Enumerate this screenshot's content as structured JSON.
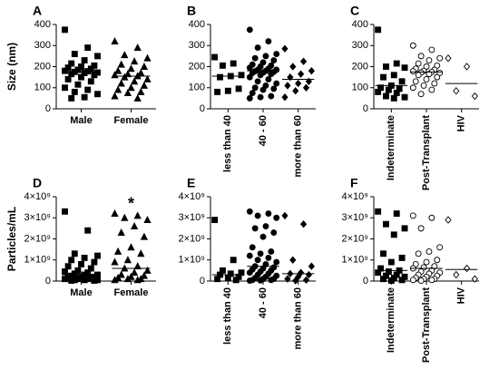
{
  "chart_data": [
    {
      "type": "strip",
      "title": "A",
      "y_label": "Size (nm)",
      "categories": [
        "Male",
        "Female"
      ],
      "markers": [
        "square",
        "triangle"
      ],
      "filled": [
        true,
        true
      ],
      "color": "#000000",
      "ylim": [
        0,
        400
      ],
      "yticks": [
        0,
        100,
        200,
        300,
        400
      ],
      "values": [
        [
          375,
          290,
          260,
          250,
          230,
          215,
          205,
          200,
          195,
          190,
          185,
          180,
          178,
          175,
          172,
          170,
          165,
          160,
          150,
          140,
          130,
          115,
          100,
          90,
          80,
          70,
          55,
          50
        ],
        [
          320,
          290,
          255,
          240,
          225,
          210,
          200,
          190,
          180,
          170,
          165,
          160,
          155,
          150,
          140,
          130,
          120,
          110,
          100,
          90,
          80,
          75,
          60,
          50
        ]
      ],
      "medians": [
        175,
        155
      ]
    },
    {
      "type": "strip",
      "title": "B",
      "categories": [
        "less than 40",
        "40 - 60",
        "more than 60"
      ],
      "markers": [
        "square",
        "circle",
        "diamond"
      ],
      "filled": [
        true,
        true,
        true
      ],
      "color": "#000000",
      "ylim": [
        0,
        400
      ],
      "yticks": [
        0,
        100,
        200,
        300,
        400
      ],
      "values": [
        [
          245,
          215,
          205,
          160,
          155,
          150,
          95,
          85,
          80
        ],
        [
          375,
          320,
          290,
          260,
          250,
          240,
          230,
          220,
          210,
          205,
          200,
          195,
          190,
          185,
          185,
          180,
          178,
          175,
          172,
          170,
          165,
          160,
          150,
          140,
          130,
          120,
          110,
          100,
          95,
          90,
          75,
          60,
          55,
          50
        ],
        [
          285,
          225,
          200,
          180,
          165,
          150,
          130,
          120,
          110,
          100,
          85,
          55
        ]
      ],
      "medians": [
        155,
        180,
        140
      ]
    },
    {
      "type": "strip",
      "title": "C",
      "categories": [
        "Indeterminate",
        "Post-Transplant",
        "HIV"
      ],
      "markers": [
        "square",
        "circle",
        "diamond"
      ],
      "filled": [
        true,
        false,
        false
      ],
      "color": "#000000",
      "ylim": [
        0,
        400
      ],
      "yticks": [
        0,
        100,
        200,
        300,
        400
      ],
      "values": [
        [
          375,
          215,
          200,
          195,
          160,
          150,
          130,
          110,
          100,
          95,
          90,
          80,
          75,
          60,
          55,
          50
        ],
        [
          300,
          280,
          250,
          240,
          230,
          215,
          205,
          200,
          190,
          185,
          180,
          178,
          175,
          172,
          170,
          165,
          160,
          150,
          140,
          130,
          120,
          110,
          100,
          90,
          70
        ],
        [
          240,
          200,
          85,
          60
        ]
      ],
      "medians": [
        110,
        175,
        120
      ]
    },
    {
      "type": "strip",
      "title": "D",
      "y_label": "Particles/mL",
      "categories": [
        "Male",
        "Female"
      ],
      "annotation": "*",
      "markers": [
        "square",
        "triangle"
      ],
      "filled": [
        true,
        true
      ],
      "color": "#000000",
      "ylim": [
        0,
        4000000000.0
      ],
      "yticks": [
        0,
        {
          "value": 1000000000.0,
          "label": "1×10⁹"
        },
        {
          "value": 2000000000.0,
          "label": "2×10⁹"
        },
        {
          "value": 3000000000.0,
          "label": "3×10⁹"
        },
        {
          "value": 4000000000.0,
          "label": "4×10⁹"
        }
      ],
      "values": [
        [
          3300000000.0,
          2400000000.0,
          1300000000.0,
          1200000000.0,
          1100000000.0,
          1000000000.0,
          900000000.0,
          800000000.0,
          700000000.0,
          600000000.0,
          500000000.0,
          450000000.0,
          400000000.0,
          350000000.0,
          300000000.0,
          300000000.0,
          250000000.0,
          200000000.0,
          200000000.0,
          150000000.0,
          150000000.0,
          100000000.0,
          100000000.0,
          100000000.0,
          50000000.0,
          50000000.0,
          50000000.0,
          20000000.0,
          20000000.0
        ],
        [
          3200000000.0,
          3100000000.0,
          3000000000.0,
          2900000000.0,
          2600000000.0,
          2300000000.0,
          2100000000.0,
          1600000000.0,
          1400000000.0,
          1300000000.0,
          1000000000.0,
          900000000.0,
          700000000.0,
          600000000.0,
          500000000.0,
          400000000.0,
          300000000.0,
          250000000.0,
          200000000.0,
          150000000.0,
          100000000.0,
          100000000.0,
          50000000.0,
          50000000.0
        ]
      ],
      "medians": [
        300000000.0,
        600000000.0
      ]
    },
    {
      "type": "strip",
      "title": "E",
      "categories": [
        "less than 40",
        "40 - 60",
        "more than 60"
      ],
      "markers": [
        "square",
        "circle",
        "diamond"
      ],
      "filled": [
        true,
        true,
        true
      ],
      "color": "#000000",
      "ylim": [
        0,
        4000000000.0
      ],
      "yticks": [
        0,
        {
          "value": 1000000000.0,
          "label": "1×10⁹"
        },
        {
          "value": 2000000000.0,
          "label": "2×10⁹"
        },
        {
          "value": 3000000000.0,
          "label": "3×10⁹"
        },
        {
          "value": 4000000000.0,
          "label": "4×10⁹"
        }
      ],
      "values": [
        [
          2900000000.0,
          1000000000.0,
          500000000.0,
          400000000.0,
          350000000.0,
          300000000.0,
          200000000.0,
          150000000.0,
          100000000.0,
          50000000.0
        ],
        [
          3300000000.0,
          3200000000.0,
          3100000000.0,
          3000000000.0,
          2600000000.0,
          2500000000.0,
          2300000000.0,
          2100000000.0,
          1600000000.0,
          1400000000.0,
          1300000000.0,
          1200000000.0,
          1100000000.0,
          1000000000.0,
          900000000.0,
          800000000.0,
          700000000.0,
          650000000.0,
          600000000.0,
          550000000.0,
          500000000.0,
          450000000.0,
          400000000.0,
          350000000.0,
          300000000.0,
          250000000.0,
          200000000.0,
          150000000.0,
          100000000.0,
          100000000.0,
          50000000.0,
          50000000.0,
          30000000.0,
          20000000.0
        ],
        [
          3100000000.0,
          2700000000.0,
          1000000000.0,
          700000000.0,
          400000000.0,
          350000000.0,
          300000000.0,
          200000000.0,
          100000000.0,
          50000000.0,
          20000000.0
        ]
      ],
      "medians": [
        300000000.0,
        700000000.0,
        350000000.0
      ]
    },
    {
      "type": "strip",
      "title": "F",
      "categories": [
        "Indeterminate",
        "Post-Transplant",
        "HIV"
      ],
      "markers": [
        "square",
        "circle",
        "diamond"
      ],
      "filled": [
        true,
        false,
        false
      ],
      "color": "#000000",
      "ylim": [
        0,
        4000000000.0
      ],
      "yticks": [
        0,
        {
          "value": 1000000000.0,
          "label": "1×10⁹"
        },
        {
          "value": 2000000000.0,
          "label": "2×10⁹"
        },
        {
          "value": 3000000000.0,
          "label": "3×10⁹"
        },
        {
          "value": 4000000000.0,
          "label": "4×10⁹"
        }
      ],
      "values": [
        [
          3300000000.0,
          3200000000.0,
          2700000000.0,
          2500000000.0,
          2200000000.0,
          1300000000.0,
          1100000000.0,
          900000000.0,
          600000000.0,
          500000000.0,
          450000000.0,
          400000000.0,
          300000000.0,
          250000000.0,
          200000000.0,
          150000000.0,
          100000000.0,
          50000000.0,
          20000000.0
        ],
        [
          3100000000.0,
          3000000000.0,
          2500000000.0,
          1600000000.0,
          1400000000.0,
          1300000000.0,
          1000000000.0,
          900000000.0,
          800000000.0,
          700000000.0,
          650000000.0,
          600000000.0,
          500000000.0,
          450000000.0,
          400000000.0,
          350000000.0,
          300000000.0,
          250000000.0,
          200000000.0,
          150000000.0,
          100000000.0,
          100000000.0,
          50000000.0,
          50000000.0,
          20000000.0
        ],
        [
          2900000000.0,
          600000000.0,
          300000000.0,
          100000000.0
        ]
      ],
      "medians": [
        500000000.0,
        600000000.0,
        550000000.0
      ]
    }
  ]
}
